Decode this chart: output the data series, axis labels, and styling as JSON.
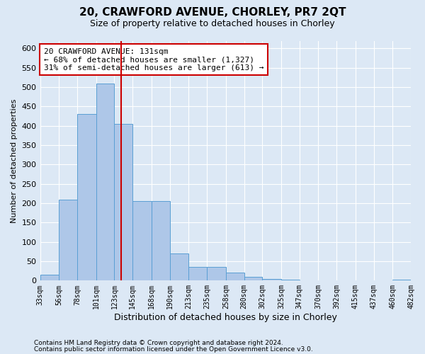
{
  "title": "20, CRAWFORD AVENUE, CHORLEY, PR7 2QT",
  "subtitle": "Size of property relative to detached houses in Chorley",
  "xlabel": "Distribution of detached houses by size in Chorley",
  "ylabel": "Number of detached properties",
  "footnote1": "Contains HM Land Registry data © Crown copyright and database right 2024.",
  "footnote2": "Contains public sector information licensed under the Open Government Licence v3.0.",
  "annotation_line1": "20 CRAWFORD AVENUE: 131sqm",
  "annotation_line2": "← 68% of detached houses are smaller (1,327)",
  "annotation_line3": "31% of semi-detached houses are larger (613) →",
  "property_size": 131,
  "bar_left_edges": [
    33,
    56,
    78,
    101,
    123,
    145,
    168,
    190,
    213,
    235,
    258,
    280,
    302,
    325,
    347,
    370,
    392,
    415,
    437,
    460
  ],
  "bar_widths": [
    23,
    22,
    23,
    22,
    22,
    23,
    22,
    23,
    22,
    23,
    22,
    22,
    23,
    22,
    23,
    22,
    23,
    22,
    23,
    22
  ],
  "bar_heights": [
    15,
    210,
    430,
    510,
    405,
    205,
    205,
    70,
    35,
    35,
    20,
    10,
    5,
    2,
    1,
    1,
    0,
    0,
    0,
    2
  ],
  "bar_color": "#aec7e8",
  "bar_edge_color": "#5a9fd4",
  "vline_color": "#cc0000",
  "vline_x": 131,
  "annotation_box_color": "#cc0000",
  "ylim": [
    0,
    620
  ],
  "yticks": [
    0,
    50,
    100,
    150,
    200,
    250,
    300,
    350,
    400,
    450,
    500,
    550,
    600
  ],
  "bg_color": "#dce8f5",
  "plot_bg_color": "#dce8f5",
  "grid_color": "#ffffff",
  "tick_labels": [
    "33sqm",
    "56sqm",
    "78sqm",
    "101sqm",
    "123sqm",
    "145sqm",
    "168sqm",
    "190sqm",
    "213sqm",
    "235sqm",
    "258sqm",
    "280sqm",
    "302sqm",
    "325sqm",
    "347sqm",
    "370sqm",
    "392sqm",
    "415sqm",
    "437sqm",
    "460sqm",
    "482sqm"
  ],
  "title_fontsize": 11,
  "subtitle_fontsize": 9,
  "annotation_fontsize": 8,
  "ylabel_fontsize": 8,
  "xlabel_fontsize": 9,
  "ytick_fontsize": 8,
  "xtick_fontsize": 7,
  "footnote_fontsize": 6.5
}
